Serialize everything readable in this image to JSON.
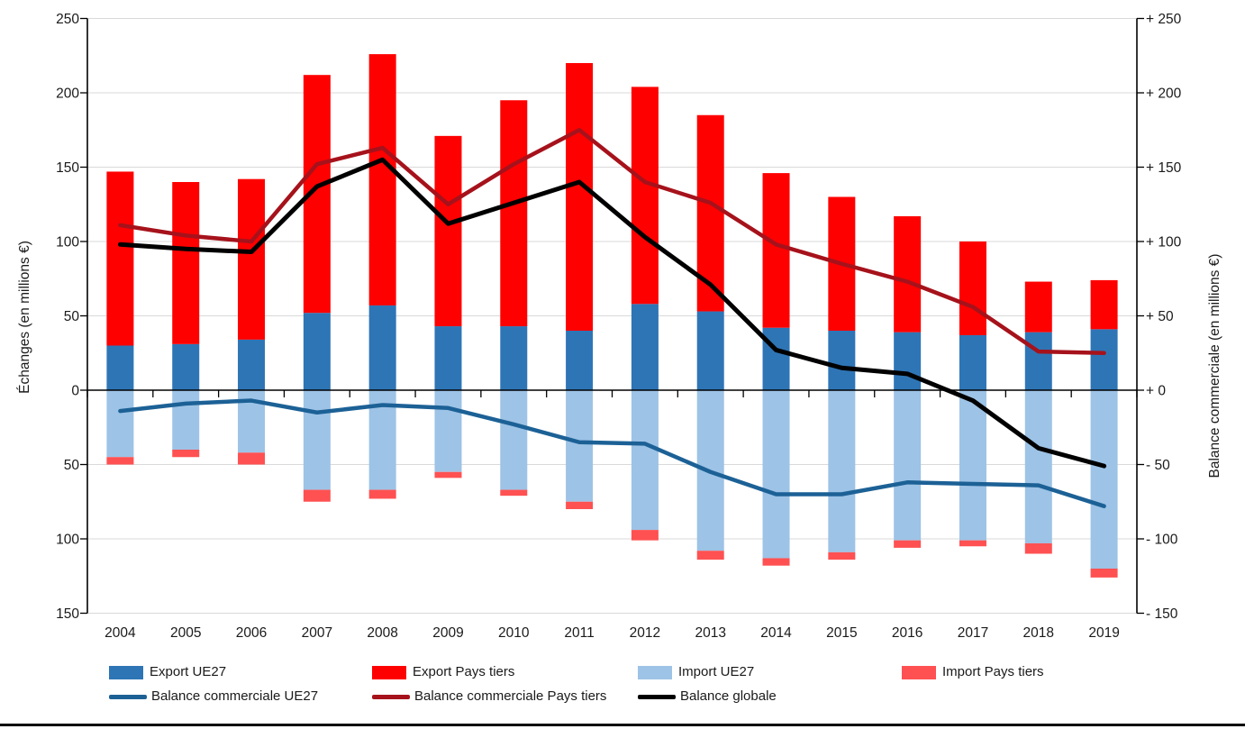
{
  "chart_data": {
    "type": "bar",
    "subtype": "stacked-bars-with-lines-combo",
    "title": "",
    "categories": [
      "2004",
      "2005",
      "2006",
      "2007",
      "2008",
      "2009",
      "2010",
      "2011",
      "2012",
      "2013",
      "2014",
      "2015",
      "2016",
      "2017",
      "2018",
      "2019"
    ],
    "bar_series": [
      {
        "id": "export_ue27",
        "name": "Export UE27",
        "color": "#2E75B6",
        "stack": "export",
        "direction": "up",
        "values": [
          30,
          31,
          34,
          52,
          57,
          43,
          43,
          40,
          58,
          53,
          42,
          40,
          39,
          37,
          39,
          41
        ]
      },
      {
        "id": "export_pays_tiers",
        "name": "Export Pays tiers",
        "color": "#FF0000",
        "stack": "export",
        "direction": "up",
        "values": [
          117,
          109,
          108,
          160,
          169,
          128,
          152,
          180,
          146,
          132,
          104,
          90,
          78,
          63,
          34,
          33
        ]
      },
      {
        "id": "import_ue27",
        "name": "Import UE27",
        "color": "#9DC3E6",
        "stack": "import",
        "direction": "down",
        "values": [
          45,
          40,
          42,
          67,
          67,
          55,
          67,
          75,
          94,
          108,
          113,
          109,
          101,
          101,
          103,
          120
        ]
      },
      {
        "id": "import_pays_tiers",
        "name": "Import Pays tiers",
        "color": "#FF5152",
        "stack": "import",
        "direction": "down",
        "values": [
          5,
          5,
          8,
          8,
          6,
          4,
          4,
          5,
          7,
          6,
          5,
          5,
          5,
          4,
          7,
          6
        ]
      }
    ],
    "line_series": [
      {
        "id": "balance_ue27",
        "name": "Balance commerciale UE27",
        "color": "#1C6196",
        "width": 4.5,
        "values": [
          -14,
          -9,
          -7,
          -15,
          -10,
          -12,
          -23,
          -35,
          -36,
          -55,
          -70,
          -70,
          -62,
          -63,
          -64,
          -78
        ]
      },
      {
        "id": "balance_pays_tiers",
        "name": "Balance commerciale Pays tiers",
        "color": "#A6121B",
        "width": 4.5,
        "values": [
          111,
          104,
          100,
          152,
          163,
          125,
          152,
          175,
          140,
          126,
          98,
          85,
          73,
          56,
          26,
          25
        ]
      },
      {
        "id": "balance_globale",
        "name": "Balance globale",
        "color": "#000000",
        "width": 5,
        "values": [
          98,
          95,
          93,
          137,
          155,
          112,
          126,
          140,
          103,
          71,
          27,
          15,
          11,
          -7,
          -39,
          -51
        ]
      }
    ],
    "left_axis": {
      "title": "Échanges (en millions €)",
      "labels": [
        "250",
        "200",
        "150",
        "100",
        "50",
        "0",
        "50",
        "100",
        "150"
      ],
      "values": [
        250,
        200,
        150,
        100,
        50,
        0,
        -50,
        -100,
        -150
      ]
    },
    "right_axis": {
      "title": "Balance commerciale (en millions €)",
      "labels": [
        "+ 250",
        "+ 200",
        "+ 150",
        "+ 100",
        "+ 50",
        "+ 0",
        "- 50",
        "- 100",
        "- 150"
      ],
      "values": [
        250,
        200,
        150,
        100,
        50,
        0,
        -50,
        -100,
        -150
      ]
    },
    "ylim": [
      -150,
      250
    ],
    "grid": true,
    "gridline_color": "#D9D9D9",
    "axis_color": "#000000",
    "legend_position": "bottom"
  },
  "legend": {
    "row1": [
      {
        "label": "Export UE27",
        "color": "#2E75B6",
        "marker": "swatch"
      },
      {
        "label": "Export Pays tiers",
        "color": "#FF0000",
        "marker": "swatch"
      },
      {
        "label": "Import UE27",
        "color": "#9DC3E6",
        "marker": "swatch"
      },
      {
        "label": "Import Pays tiers",
        "color": "#FF5152",
        "marker": "swatch"
      }
    ],
    "row2": [
      {
        "label": "Balance commerciale UE27",
        "color": "#1C6196",
        "marker": "line"
      },
      {
        "label": "Balance commerciale Pays tiers",
        "color": "#A6121B",
        "marker": "line"
      },
      {
        "label": "Balance globale",
        "color": "#000000",
        "marker": "line"
      }
    ]
  }
}
